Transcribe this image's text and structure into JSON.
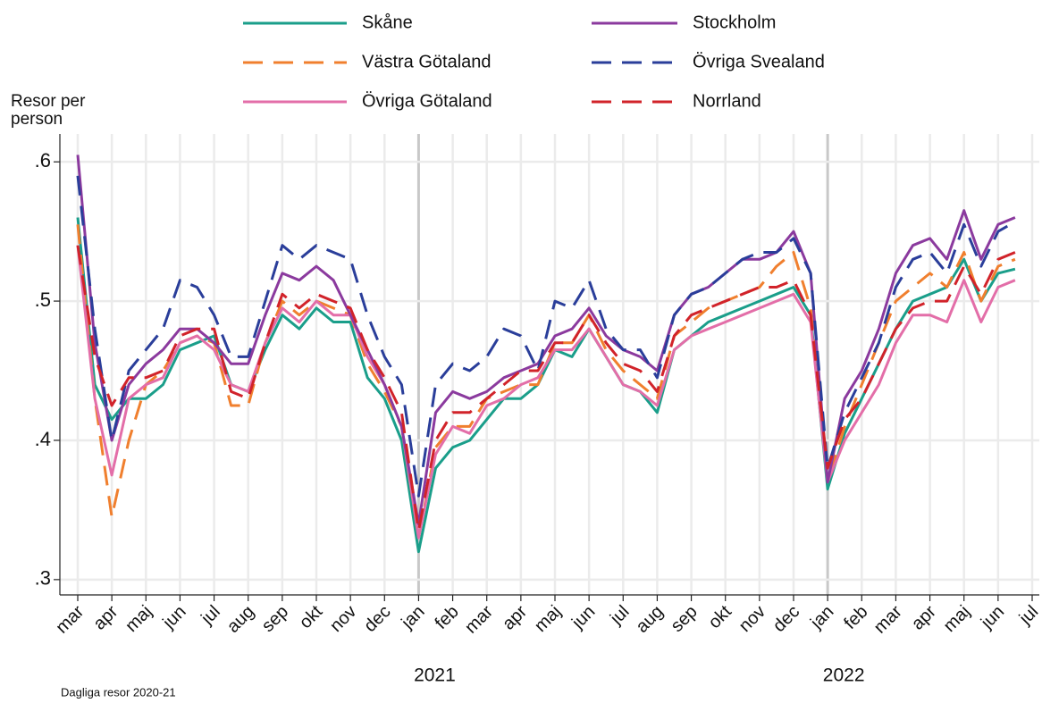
{
  "chart_data": {
    "type": "line",
    "y_label": "Resor per person",
    "annotations": [
      "2021",
      "2022"
    ],
    "note": "Dagliga resor 2020-21",
    "categories": [
      "mar",
      null,
      "apr",
      null,
      "maj",
      null,
      "jun",
      null,
      "jul",
      null,
      "aug",
      null,
      "sep",
      null,
      "okt",
      null,
      "nov",
      null,
      "dec",
      null,
      "jan",
      null,
      "feb",
      null,
      "mar",
      null,
      "apr",
      null,
      "maj",
      null,
      "jun",
      null,
      "jul",
      null,
      "aug",
      null,
      "sep",
      null,
      "okt",
      null,
      "nov",
      null,
      "dec",
      null,
      "jan",
      null,
      "feb",
      null,
      "mar",
      null,
      "apr",
      null,
      "maj",
      null,
      "jun",
      null,
      "jul"
    ],
    "ylim": [
      0.289,
      0.62
    ],
    "yticks": [
      {
        "value": 0.3,
        "label": ".3"
      },
      {
        "value": 0.4,
        "label": ".4"
      },
      {
        "value": 0.5,
        "label": ".5"
      },
      {
        "value": 0.6,
        "label": ".6"
      }
    ],
    "grid": true,
    "legend": "top",
    "series": [
      {
        "name": "Skåne",
        "color": "#1a9e8a",
        "style": "solid",
        "values": [
          0.56,
          0.44,
          0.415,
          0.43,
          0.43,
          0.44,
          0.465,
          0.47,
          0.475,
          0.44,
          0.435,
          0.465,
          0.49,
          0.48,
          0.495,
          0.485,
          0.485,
          0.445,
          0.43,
          0.4,
          0.32,
          0.38,
          0.395,
          0.4,
          0.415,
          0.43,
          0.43,
          0.44,
          0.465,
          0.46,
          0.48,
          0.46,
          0.44,
          0.435,
          0.42,
          0.465,
          0.475,
          0.485,
          0.49,
          0.495,
          0.5,
          0.505,
          0.51,
          0.49,
          0.365,
          0.405,
          0.43,
          0.455,
          0.48,
          0.5,
          0.505,
          0.51,
          0.53,
          0.5,
          0.52,
          0.523,
          null
        ]
      },
      {
        "name": "Västra Götaland",
        "color": "#f07f2e",
        "style": "dashed",
        "values": [
          0.555,
          0.43,
          0.345,
          0.4,
          0.44,
          0.45,
          0.47,
          0.475,
          0.47,
          0.425,
          0.425,
          0.47,
          0.5,
          0.49,
          0.5,
          0.495,
          0.49,
          0.455,
          0.435,
          0.41,
          0.33,
          0.395,
          0.41,
          0.41,
          0.43,
          0.435,
          0.44,
          0.44,
          0.47,
          0.47,
          0.49,
          0.465,
          0.45,
          0.44,
          0.43,
          0.475,
          0.485,
          0.495,
          0.5,
          0.505,
          0.51,
          0.525,
          0.535,
          0.495,
          0.37,
          0.41,
          0.44,
          0.47,
          0.5,
          0.51,
          0.52,
          0.51,
          0.535,
          0.5,
          0.525,
          0.53,
          null
        ]
      },
      {
        "name": "Övriga Götaland",
        "color": "#e36ea8",
        "style": "solid",
        "values": [
          0.54,
          0.43,
          0.375,
          0.43,
          0.44,
          0.445,
          0.47,
          0.475,
          0.465,
          0.44,
          0.435,
          0.47,
          0.495,
          0.485,
          0.5,
          0.49,
          0.49,
          0.46,
          0.44,
          0.41,
          0.33,
          0.39,
          0.41,
          0.405,
          0.425,
          0.43,
          0.44,
          0.445,
          0.465,
          0.465,
          0.48,
          0.46,
          0.44,
          0.435,
          0.425,
          0.465,
          0.475,
          0.48,
          0.485,
          0.49,
          0.495,
          0.5,
          0.505,
          0.485,
          0.37,
          0.4,
          0.42,
          0.44,
          0.47,
          0.49,
          0.49,
          0.485,
          0.515,
          0.485,
          0.51,
          0.515,
          null
        ]
      },
      {
        "name": "Stockholm",
        "color": "#8b3a9e",
        "style": "solid",
        "values": [
          0.605,
          0.47,
          0.4,
          0.44,
          0.455,
          0.465,
          0.48,
          0.48,
          0.47,
          0.455,
          0.455,
          0.49,
          0.52,
          0.515,
          0.525,
          0.515,
          0.49,
          0.465,
          0.44,
          0.41,
          0.34,
          0.42,
          0.435,
          0.43,
          0.435,
          0.445,
          0.45,
          0.455,
          0.475,
          0.48,
          0.495,
          0.475,
          0.465,
          0.46,
          0.45,
          0.49,
          0.505,
          0.51,
          0.52,
          0.53,
          0.53,
          0.535,
          0.55,
          0.52,
          0.37,
          0.43,
          0.45,
          0.48,
          0.52,
          0.54,
          0.545,
          0.53,
          0.565,
          0.53,
          0.555,
          0.56,
          null
        ]
      },
      {
        "name": "Övriga Svealand",
        "color": "#2a3e9a",
        "style": "dashed",
        "values": [
          0.59,
          0.48,
          0.4,
          0.45,
          0.465,
          0.48,
          0.515,
          0.51,
          0.49,
          0.46,
          0.46,
          0.5,
          0.54,
          0.53,
          0.54,
          0.535,
          0.53,
          0.49,
          0.46,
          0.44,
          0.36,
          0.44,
          0.455,
          0.45,
          0.46,
          0.48,
          0.475,
          0.45,
          0.5,
          0.495,
          0.515,
          0.48,
          0.465,
          0.465,
          0.445,
          0.49,
          0.505,
          0.51,
          0.52,
          0.53,
          0.535,
          0.535,
          0.545,
          0.52,
          0.38,
          0.42,
          0.445,
          0.47,
          0.51,
          0.53,
          0.535,
          0.52,
          0.555,
          0.525,
          0.55,
          0.557,
          null
        ]
      },
      {
        "name": "Norrland",
        "color": "#d1232a",
        "style": "dashed",
        "values": [
          0.54,
          0.46,
          0.425,
          0.445,
          0.445,
          0.45,
          0.475,
          0.48,
          0.48,
          0.435,
          0.43,
          0.47,
          0.505,
          0.495,
          0.505,
          0.5,
          0.495,
          0.465,
          0.445,
          0.42,
          0.335,
          0.4,
          0.42,
          0.42,
          0.43,
          0.44,
          0.45,
          0.45,
          0.47,
          0.47,
          0.49,
          0.47,
          0.455,
          0.45,
          0.435,
          0.475,
          0.49,
          0.495,
          0.5,
          0.505,
          0.51,
          0.51,
          0.515,
          0.49,
          0.38,
          0.415,
          0.43,
          0.455,
          0.48,
          0.495,
          0.5,
          0.5,
          0.525,
          0.505,
          0.53,
          0.535,
          null
        ]
      }
    ]
  }
}
